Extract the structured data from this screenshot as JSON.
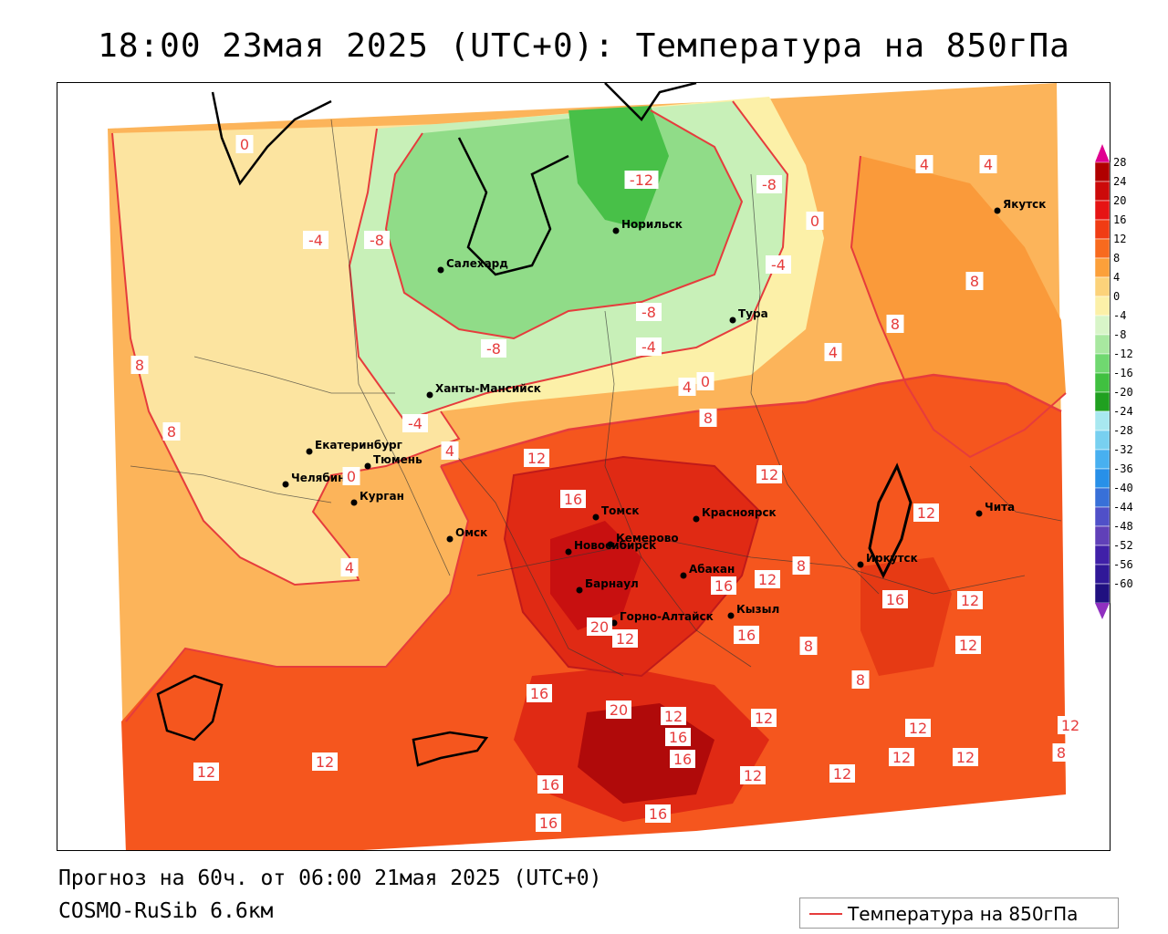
{
  "title": "18:00 23мая 2025 (UTC+0): Температура на 850гПа",
  "footer": {
    "forecast": "Прогноз на 60ч. от 06:00 21мая 2025 (UTC+0)",
    "model": "COSMO-RuSib 6.6км"
  },
  "legend": {
    "label": "Температура на 850гПа",
    "color": "#e63c3c"
  },
  "colorbar": {
    "levels": [
      "28",
      "24",
      "20",
      "16",
      "12",
      "8",
      "4",
      "0",
      "-4",
      "-8",
      "-12",
      "-16",
      "-20",
      "-24",
      "-28",
      "-32",
      "-36",
      "-40",
      "-44",
      "-48",
      "-52",
      "-56",
      "-60"
    ],
    "colors": [
      "#b00000",
      "#cc0a0a",
      "#e61414",
      "#f03c14",
      "#f86a1e",
      "#fca03a",
      "#fcd27a",
      "#fcf0a8",
      "#d8f5c8",
      "#a8e8a0",
      "#70d870",
      "#40c040",
      "#20a020",
      "#a8e8f0",
      "#78d0f0",
      "#48b0f0",
      "#2890e8",
      "#3870d8",
      "#5050c8",
      "#6040b8",
      "#4020a8",
      "#301898",
      "#201080"
    ],
    "top_arrow_color": "#e00090",
    "bottom_arrow_color": "#9030c0"
  },
  "cities": [
    {
      "name": "Якутск"
    },
    {
      "name": "Норильск"
    },
    {
      "name": "Салехард"
    },
    {
      "name": "Тура"
    },
    {
      "name": "Ханты-Мансийск"
    },
    {
      "name": "Екатеринбург"
    },
    {
      "name": "Тюмень"
    },
    {
      "name": "Челябинск"
    },
    {
      "name": "Курган"
    },
    {
      "name": "Омск"
    },
    {
      "name": "Новосибирск"
    },
    {
      "name": "Томск"
    },
    {
      "name": "Кемерово"
    },
    {
      "name": "Красноярск"
    },
    {
      "name": "Барнаул"
    },
    {
      "name": "Абакан"
    },
    {
      "name": "Горно-Алтайск"
    },
    {
      "name": "Кызыл"
    },
    {
      "name": "Иркутск"
    },
    {
      "name": "Чита"
    }
  ],
  "contour_labels": [
    "0",
    "-4",
    "-8",
    "-12",
    "-8",
    "0",
    "-4",
    "-8",
    "-4",
    "0",
    "4",
    "4",
    "8",
    "8",
    "4",
    "4",
    "8",
    "-8",
    "-4",
    "0",
    "4",
    "4",
    "8",
    "12",
    "16",
    "12",
    "12",
    "16",
    "12",
    "8",
    "12",
    "16",
    "12",
    "16",
    "8",
    "8",
    "12",
    "16",
    "16",
    "20",
    "12",
    "16",
    "12",
    "12",
    "12",
    "8",
    "20",
    "12",
    "12",
    "16",
    "16",
    "16",
    "12",
    "12",
    "12",
    "12",
    "8"
  ]
}
